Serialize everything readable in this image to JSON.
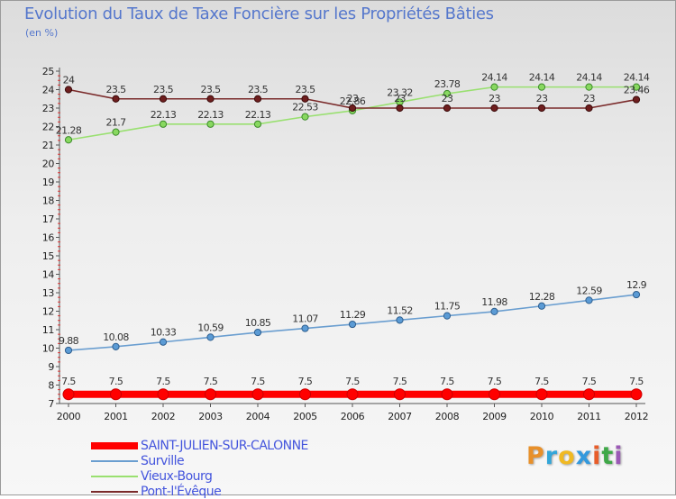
{
  "title": "Evolution du Taux de Taxe Foncière sur les Propriétés Bâties",
  "unit": "(en %)",
  "brand": "Proxiti",
  "brand_colors": [
    "#e8902a",
    "#33a6d9",
    "#f0b923",
    "#3399dd",
    "#e85d2a",
    "#3fa848",
    "#9b59b6"
  ],
  "chart_data": {
    "type": "line",
    "title": "Evolution du Taux de Taxe Foncière sur les Propriétés Bâties",
    "xlabel": "",
    "ylabel": "(en %)",
    "ylim": [
      7,
      25
    ],
    "yticks": [
      7,
      8,
      9,
      10,
      11,
      12,
      13,
      14,
      15,
      16,
      17,
      18,
      19,
      20,
      21,
      22,
      23,
      24,
      25
    ],
    "categories": [
      "2000",
      "2001",
      "2002",
      "2003",
      "2004",
      "2005",
      "2006",
      "2007",
      "2008",
      "2009",
      "2010",
      "2011",
      "2012"
    ],
    "series": [
      {
        "name": "SAINT-JULIEN-SUR-CALONNE",
        "color": "#ff0000",
        "marker_fill": "#ff0000",
        "marker_stroke": "#cc0000",
        "values": [
          7.5,
          7.5,
          7.5,
          7.5,
          7.5,
          7.5,
          7.5,
          7.5,
          7.5,
          7.5,
          7.5,
          7.5,
          7.5
        ],
        "labels": [
          "7.5",
          "7.5",
          "7.5",
          "7.5",
          "7.5",
          "7.5",
          "7.5",
          "7.5",
          "7.5",
          "7.5",
          "7.5",
          "7.5",
          "7.5"
        ]
      },
      {
        "name": "Surville",
        "color": "#6a9ed0",
        "marker_fill": "#5b9bd5",
        "marker_stroke": "#2f5f8f",
        "values": [
          9.88,
          10.08,
          10.33,
          10.59,
          10.85,
          11.07,
          11.29,
          11.52,
          11.75,
          11.98,
          12.28,
          12.59,
          12.9
        ],
        "labels": [
          "9.88",
          "10.08",
          "10.33",
          "10.59",
          "10.85",
          "11.07",
          "11.29",
          "11.52",
          "11.75",
          "11.98",
          "12.28",
          "12.59",
          "12.9"
        ]
      },
      {
        "name": "Vieux-Bourg",
        "color": "#99e070",
        "marker_fill": "#88d860",
        "marker_stroke": "#3c8a2a",
        "values": [
          21.28,
          21.7,
          22.13,
          22.13,
          22.13,
          22.53,
          22.86,
          23.32,
          23.78,
          24.14,
          24.14,
          24.14,
          24.14
        ],
        "labels": [
          "21.28",
          "21.7",
          "22.13",
          "22.13",
          "22.13",
          "22.53",
          "22.86",
          "23.32",
          "23.78",
          "24.14",
          "24.14",
          "24.14",
          "24.14"
        ]
      },
      {
        "name": "Pont-l'Évêque",
        "color": "#7a2a2a",
        "marker_fill": "#6e1e1e",
        "marker_stroke": "#3a0a0a",
        "values": [
          24,
          23.5,
          23.5,
          23.5,
          23.5,
          23.5,
          23,
          23,
          23,
          23,
          23,
          23,
          23.46
        ],
        "labels": [
          "24",
          "23.5",
          "23.5",
          "23.5",
          "23.5",
          "23.5",
          "23",
          "23",
          "23",
          "23",
          "23",
          "23",
          "23.46"
        ]
      }
    ]
  }
}
